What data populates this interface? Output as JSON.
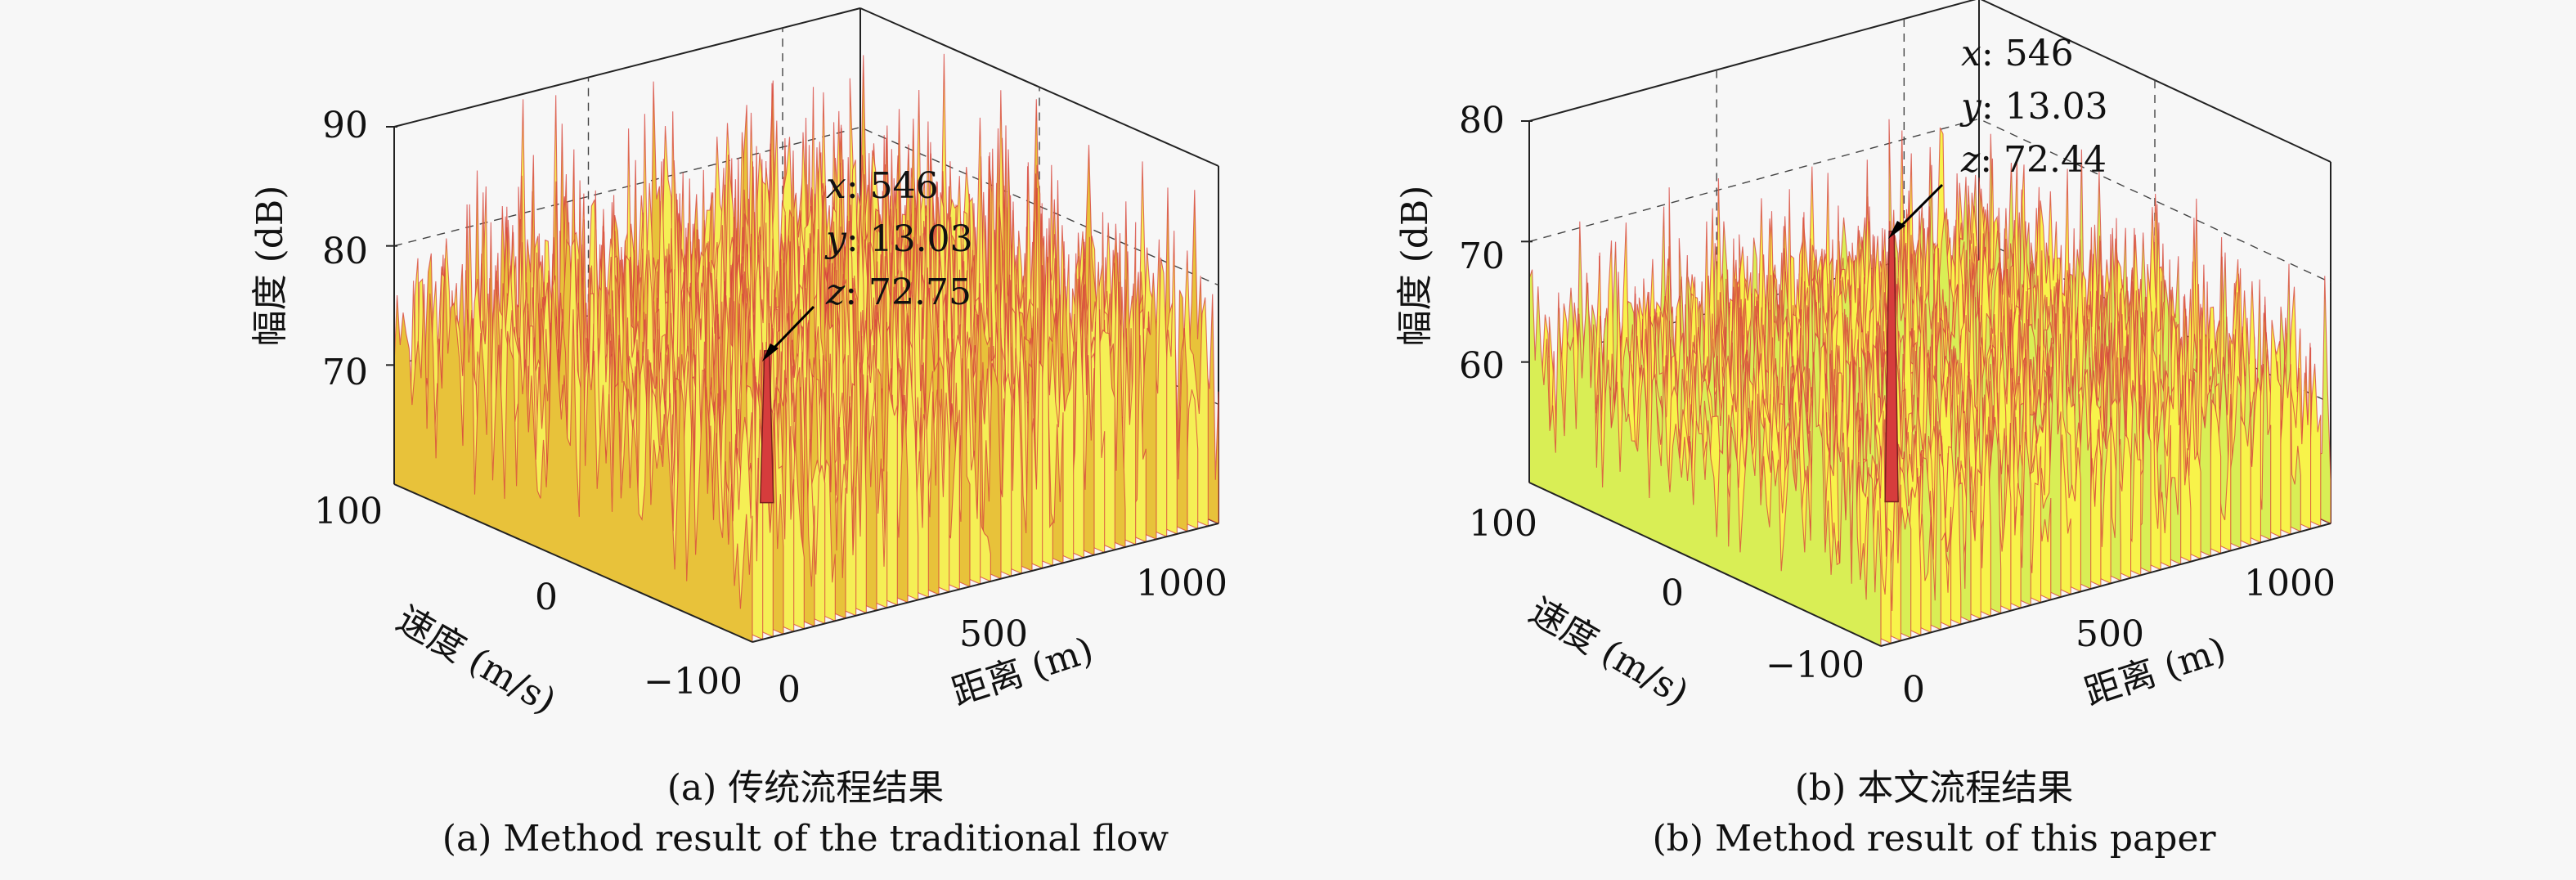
{
  "chart_data": [
    {
      "type": "surface3d",
      "panel": "a",
      "zlabel": "幅度 (dB)",
      "xlabel": "距离 (m)",
      "ylabel": "速度 (m/s)",
      "xticks": [
        "0",
        "500",
        "1000"
      ],
      "yticks": [
        "100",
        "0",
        "−100"
      ],
      "zticks": [
        "70",
        "80",
        "90"
      ],
      "xlim": [
        0,
        1200
      ],
      "ylim": [
        -100,
        100
      ],
      "zlim": [
        60,
        90
      ],
      "grid": true,
      "noise_floor_db": 70,
      "noise_spread_db": 8,
      "colors": {
        "low": "#f5ef55",
        "mid": "#e8c23a",
        "high": "#d63c3c"
      },
      "datatip": {
        "x": 546,
        "y": 13.03,
        "z": 72.75,
        "x_text": "546",
        "y_text": "13.03",
        "z_text": "72.75"
      },
      "caption_cn": "(a) 传统流程结果",
      "caption_en": "(a) Method result of the traditional flow"
    },
    {
      "type": "surface3d",
      "panel": "b",
      "zlabel": "幅度 (dB)",
      "xlabel": "距离 (m)",
      "ylabel": "速度 (m/s)",
      "xticks": [
        "0",
        "500",
        "1000"
      ],
      "yticks": [
        "100",
        "0",
        "−100"
      ],
      "zticks": [
        "60",
        "70",
        "80"
      ],
      "xlim": [
        0,
        1200
      ],
      "ylim": [
        -100,
        100
      ],
      "zlim": [
        50,
        80
      ],
      "grid": true,
      "noise_floor_db": 58,
      "noise_spread_db": 6,
      "colors": {
        "low": "#f8f34a",
        "mid": "#d9ee55",
        "high": "#d63c3c"
      },
      "datatip": {
        "x": 546,
        "y": 13.03,
        "z": 72.44,
        "x_text": "546",
        "y_text": "13.03",
        "z_text": "72.44"
      },
      "caption_cn": "(b) 本文流程结果",
      "caption_en": "(b) Method result of this paper"
    }
  ]
}
